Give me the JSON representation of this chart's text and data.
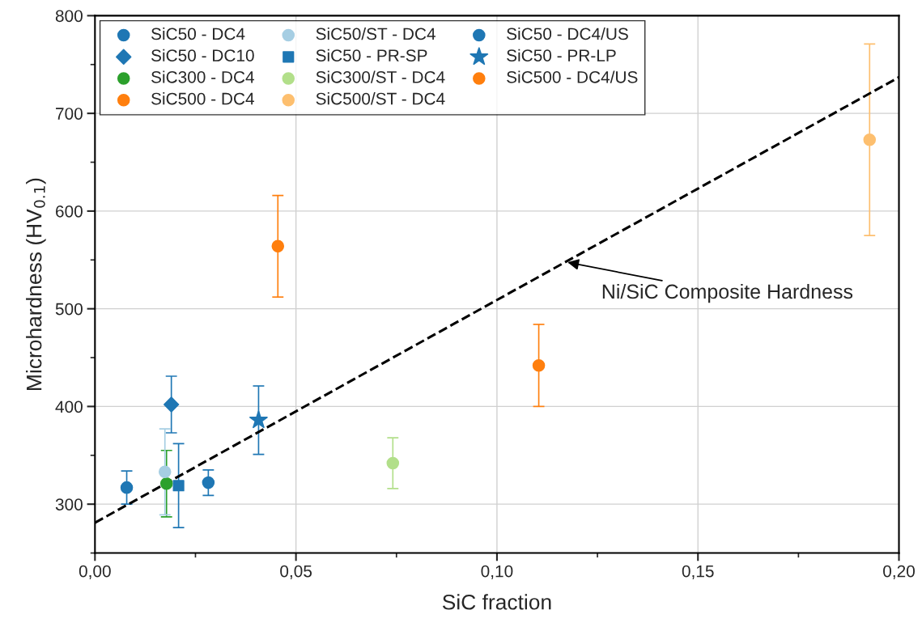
{
  "chart_data": {
    "type": "scatter",
    "xlabel": "SiC fraction",
    "ylabel": "Microhardness (HV$_{0.1}$)",
    "xlim": [
      0,
      0.2
    ],
    "ylim": [
      250,
      800
    ],
    "xticks": [
      {
        "value": 0,
        "label": "0,00"
      },
      {
        "value": 0.05,
        "label": "0,05"
      },
      {
        "value": 0.1,
        "label": "0,10"
      },
      {
        "value": 0.15,
        "label": "0,15"
      },
      {
        "value": 0.2,
        "label": "0,20"
      }
    ],
    "yticks": [
      300,
      400,
      500,
      600,
      700,
      800
    ],
    "grid": true,
    "legend": "top left",
    "annotations": [
      {
        "text": "Ni/SiC Composite Hardness",
        "x": 0.117,
        "y": 548
      }
    ],
    "series": [
      {
        "name": "SiC50 - DC4",
        "color": "#1f77b4",
        "marker": "circle",
        "x": [
          0.0079
        ],
        "values": [
          317
        ],
        "errors": [
          17
        ]
      },
      {
        "name": "SiC50 - DC10",
        "color": "#1f77b4",
        "marker": "diamond",
        "x": [
          0.019
        ],
        "values": [
          402
        ],
        "errors": [
          29
        ]
      },
      {
        "name": "SiC300 - DC4",
        "color": "#2ca02c",
        "marker": "circle",
        "x": [
          0.0178
        ],
        "values": [
          321
        ],
        "errors": [
          34
        ]
      },
      {
        "name": "SiC500 - DC4",
        "color": "#ff7f0e",
        "marker": "circle",
        "x": [
          0.1104
        ],
        "values": [
          442
        ],
        "errors": [
          42
        ]
      },
      {
        "name": "SiC50/ST - DC4",
        "color": "#a6cee3",
        "marker": "circle",
        "x": [
          0.0174
        ],
        "values": [
          333
        ],
        "errors": [
          44
        ]
      },
      {
        "name": "SiC50 - PR-SP",
        "color": "#1f77b4",
        "marker": "square",
        "x": [
          0.0208
        ],
        "values": [
          319
        ],
        "errors": [
          43
        ]
      },
      {
        "name": "SiC300/ST - DC4",
        "color": "#b2df8a",
        "marker": "circle",
        "x": [
          0.0741
        ],
        "values": [
          342
        ],
        "errors": [
          26
        ]
      },
      {
        "name": "SiC500/ST - DC4",
        "color": "#fdbf6f",
        "marker": "circle",
        "x": [
          0.1927
        ],
        "values": [
          673
        ],
        "errors": [
          98
        ]
      },
      {
        "name": "SiC50 - DC4/US",
        "color": "#1f77b4",
        "marker": "circle",
        "x": [
          0.0282
        ],
        "values": [
          322
        ],
        "errors": [
          13
        ]
      },
      {
        "name": "SiC50 - PR-LP",
        "color": "#1f77b4",
        "marker": "star",
        "x": [
          0.0407
        ],
        "values": [
          386
        ],
        "errors": [
          35
        ]
      },
      {
        "name": "SiC500 - DC4/US",
        "color": "#ff7f0e",
        "marker": "circle",
        "x": [
          0.0455
        ],
        "values": [
          564
        ],
        "errors": [
          52
        ]
      },
      {
        "type": "line",
        "color": "#000000",
        "marker": "none",
        "line_style": "dashed",
        "x": [
          0,
          0.2
        ],
        "values": [
          281,
          737
        ]
      }
    ]
  }
}
